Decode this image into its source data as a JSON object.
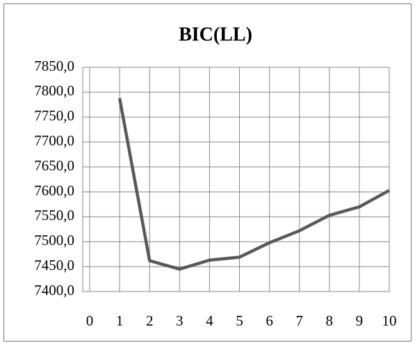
{
  "chart_data": {
    "type": "line",
    "title": "BIC(LL)",
    "x": [
      1,
      2,
      3,
      4,
      5,
      6,
      7,
      8,
      9,
      10
    ],
    "series": [
      {
        "name": "BIC(LL)",
        "color": "#595959",
        "values": [
          7788,
          7462,
          7445,
          7463,
          7469,
          7498,
          7522,
          7553,
          7570,
          7603
        ]
      }
    ],
    "xlim": [
      0,
      10
    ],
    "xticks": [
      0,
      1,
      2,
      3,
      4,
      5,
      6,
      7,
      8,
      9,
      10
    ],
    "ylim": [
      7400,
      7850
    ],
    "yticks": [
      {
        "value": 7400,
        "label": "7400,0"
      },
      {
        "value": 7450,
        "label": "7450,0"
      },
      {
        "value": 7500,
        "label": "7500,0"
      },
      {
        "value": 7550,
        "label": "7550,0"
      },
      {
        "value": 7600,
        "label": "7600,0"
      },
      {
        "value": 7650,
        "label": "7650,0"
      },
      {
        "value": 7700,
        "label": "7700,0"
      },
      {
        "value": 7750,
        "label": "7750,0"
      },
      {
        "value": 7800,
        "label": "7800,0"
      },
      {
        "value": 7850,
        "label": "7850,0"
      }
    ],
    "grid": true
  }
}
